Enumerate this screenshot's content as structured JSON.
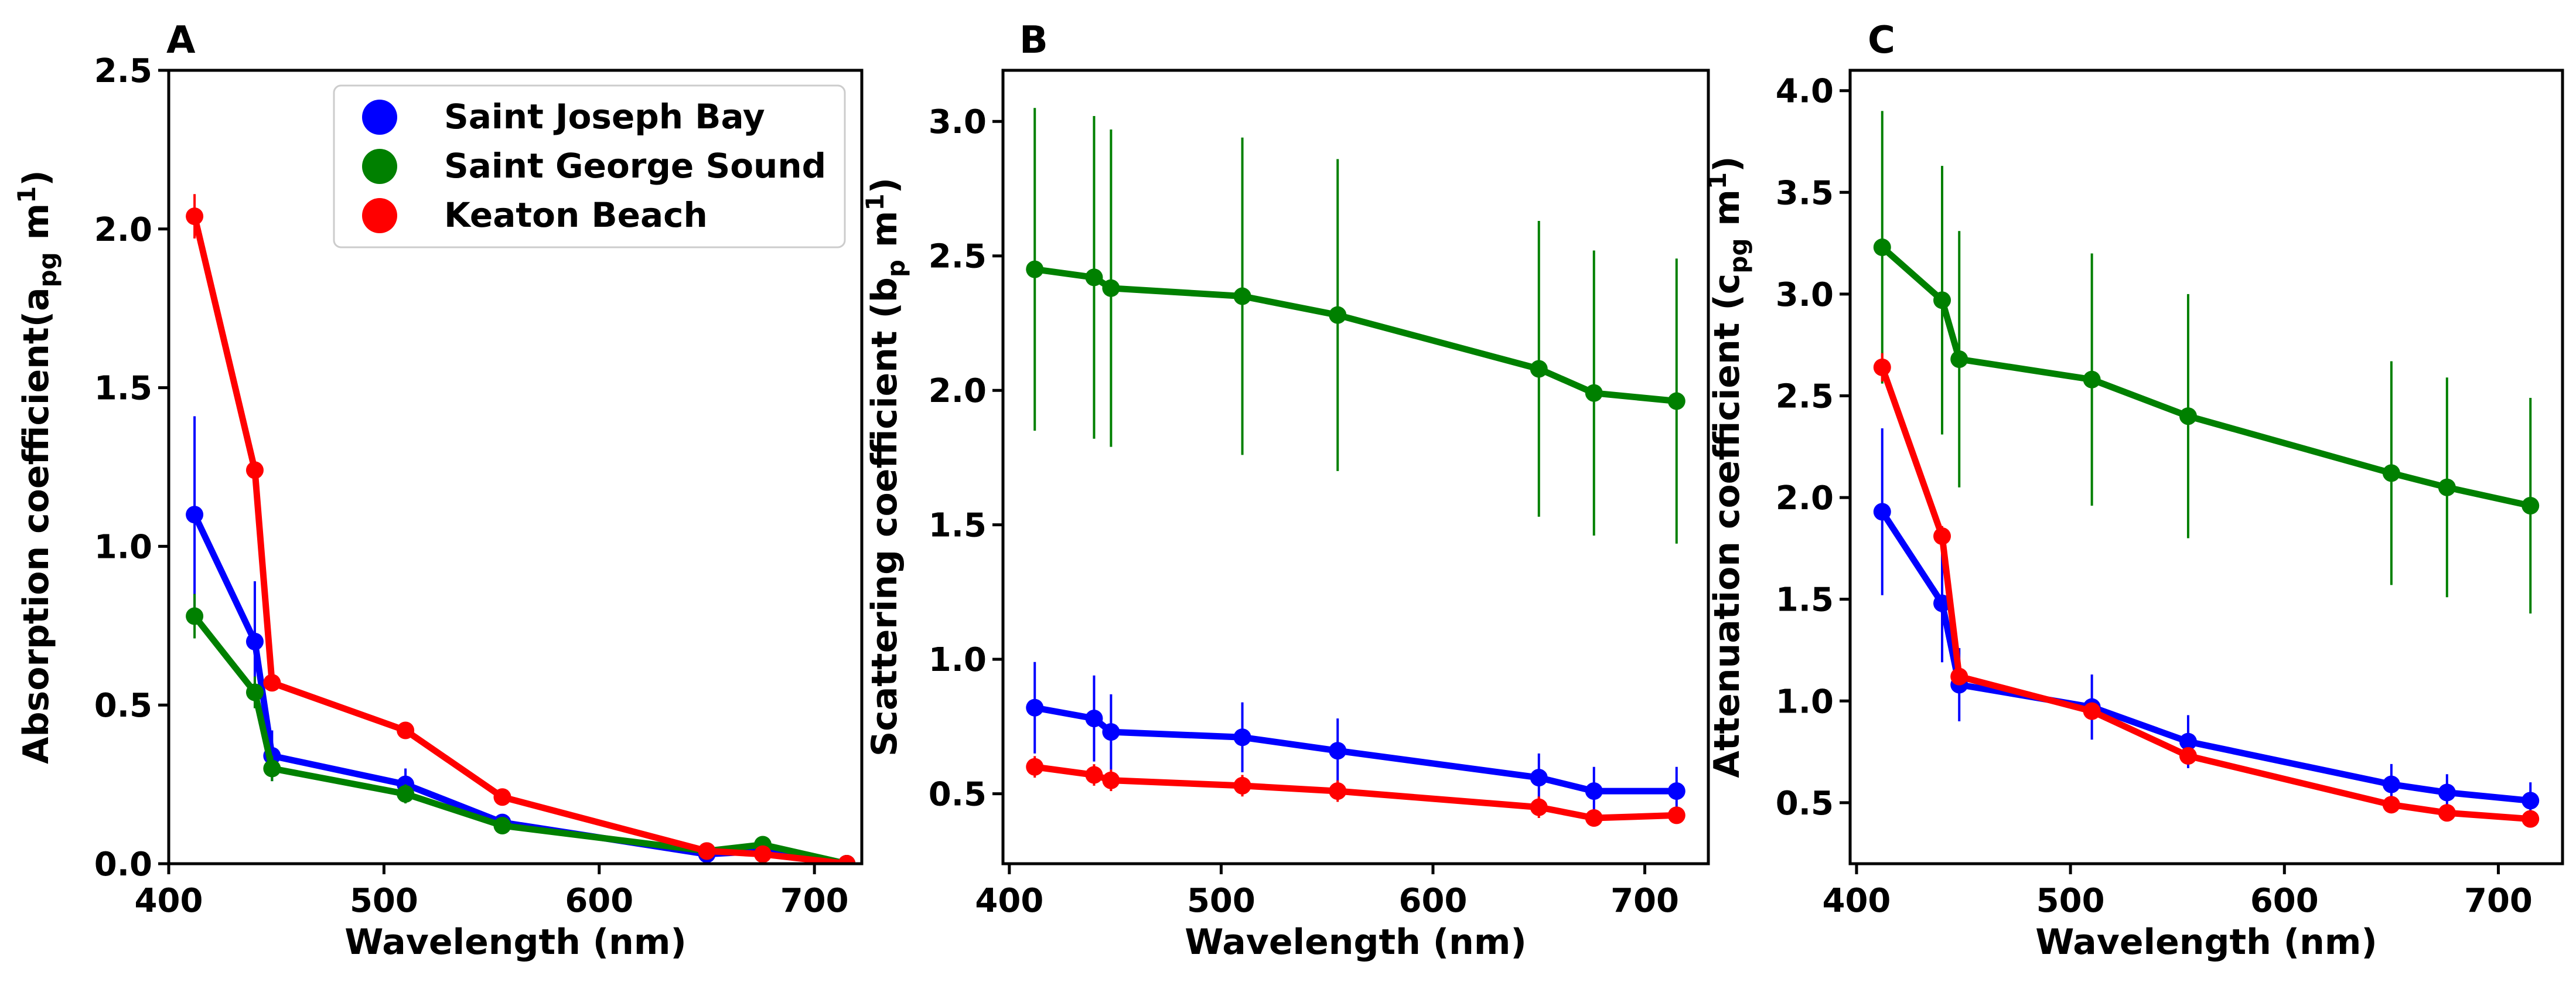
{
  "chart_data": [
    {
      "type": "line",
      "panel_label": "A",
      "xlabel": "Wavelength (nm)",
      "ylabel": "Absorption coefficient(a",
      "ylabel_sub": "pg",
      "ylabel_unit": " m",
      "ylabel_sup": "1",
      "ylabel_close": ")",
      "xlim": [
        400,
        722
      ],
      "ylim": [
        0,
        2.5
      ],
      "xticks": [
        400,
        500,
        600,
        700
      ],
      "yticks": [
        0.0,
        0.5,
        1.0,
        1.5,
        2.0,
        2.5
      ],
      "ytick_labels": [
        "0.0",
        "0.5",
        "1.0",
        "1.5",
        "2.0",
        "2.5"
      ],
      "legend": {
        "position": "top-right"
      },
      "series": [
        {
          "name": "Saint Joseph Bay",
          "color": "#0000ff",
          "x": [
            412,
            440,
            448,
            510,
            555,
            650,
            676,
            715
          ],
          "y": [
            1.1,
            0.7,
            0.34,
            0.25,
            0.13,
            0.03,
            0.04,
            0.0
          ],
          "err": [
            0.31,
            0.19,
            0.08,
            0.05,
            0.02,
            0.01,
            0.01,
            0.0
          ]
        },
        {
          "name": "Saint George Sound",
          "color": "#008000",
          "x": [
            412,
            440,
            448,
            510,
            555,
            650,
            676,
            715
          ],
          "y": [
            0.78,
            0.54,
            0.3,
            0.22,
            0.12,
            0.04,
            0.06,
            0.0
          ],
          "err": [
            0.07,
            0.05,
            0.04,
            0.03,
            0.02,
            0.01,
            0.01,
            0.0
          ]
        },
        {
          "name": "Keaton Beach",
          "color": "#ff0000",
          "x": [
            412,
            440,
            448,
            510,
            555,
            650,
            676,
            715
          ],
          "y": [
            2.04,
            1.24,
            0.57,
            0.42,
            0.21,
            0.04,
            0.03,
            0.0
          ],
          "err": [
            0.07,
            0.02,
            0.02,
            0.02,
            0.01,
            0.01,
            0.01,
            0.0
          ]
        }
      ]
    },
    {
      "type": "line",
      "panel_label": "B",
      "xlabel": "Wavelength (nm)",
      "ylabel": "Scattering coefficient (b",
      "ylabel_sub": "p",
      "ylabel_unit": " m",
      "ylabel_sup": "1",
      "ylabel_close": ")",
      "xlim": [
        397,
        730
      ],
      "ylim": [
        0.24,
        3.19
      ],
      "xticks": [
        400,
        500,
        600,
        700
      ],
      "yticks": [
        0.5,
        1.0,
        1.5,
        2.0,
        2.5,
        3.0
      ],
      "ytick_labels": [
        "0.5",
        "1.0",
        "1.5",
        "2.0",
        "2.5",
        "3.0"
      ],
      "series": [
        {
          "name": "Saint Joseph Bay",
          "color": "#0000ff",
          "x": [
            412,
            440,
            448,
            510,
            555,
            650,
            676,
            715
          ],
          "y": [
            0.82,
            0.78,
            0.73,
            0.71,
            0.66,
            0.56,
            0.51,
            0.51
          ],
          "err": [
            0.17,
            0.16,
            0.14,
            0.13,
            0.12,
            0.09,
            0.09,
            0.09
          ]
        },
        {
          "name": "Saint George Sound",
          "color": "#008000",
          "x": [
            412,
            440,
            448,
            510,
            555,
            650,
            676,
            715
          ],
          "y": [
            2.45,
            2.42,
            2.38,
            2.35,
            2.28,
            2.08,
            1.99,
            1.96
          ],
          "err": [
            0.6,
            0.6,
            0.59,
            0.59,
            0.58,
            0.55,
            0.53,
            0.53
          ]
        },
        {
          "name": "Keaton Beach",
          "color": "#ff0000",
          "x": [
            412,
            440,
            448,
            510,
            555,
            650,
            676,
            715
          ],
          "y": [
            0.6,
            0.57,
            0.55,
            0.53,
            0.51,
            0.45,
            0.41,
            0.42
          ],
          "err": [
            0.04,
            0.04,
            0.04,
            0.04,
            0.04,
            0.04,
            0.03,
            0.03
          ]
        }
      ]
    },
    {
      "type": "line",
      "panel_label": "C",
      "xlabel": "Wavelength (nm)",
      "ylabel": "Attenuation coefficient (c",
      "ylabel_sub": "pg",
      "ylabel_unit": " m",
      "ylabel_sup": "1",
      "ylabel_close": ")",
      "xlim": [
        397,
        730
      ],
      "ylim": [
        0.2,
        4.1
      ],
      "xticks": [
        400,
        500,
        600,
        700
      ],
      "yticks": [
        0.5,
        1.0,
        1.5,
        2.0,
        2.5,
        3.0,
        3.5,
        4.0
      ],
      "ytick_labels": [
        "0.5",
        "1.0",
        "1.5",
        "2.0",
        "2.5",
        "3.0",
        "3.5",
        "4.0"
      ],
      "series": [
        {
          "name": "Saint Joseph Bay",
          "color": "#0000ff",
          "x": [
            412,
            440,
            448,
            510,
            555,
            650,
            676,
            715
          ],
          "y": [
            1.93,
            1.48,
            1.08,
            0.97,
            0.8,
            0.59,
            0.55,
            0.51
          ],
          "err": [
            0.41,
            0.29,
            0.18,
            0.16,
            0.13,
            0.1,
            0.09,
            0.09
          ]
        },
        {
          "name": "Saint George Sound",
          "color": "#008000",
          "x": [
            412,
            440,
            448,
            510,
            555,
            650,
            676,
            715
          ],
          "y": [
            3.23,
            2.97,
            2.68,
            2.58,
            2.4,
            2.12,
            2.05,
            1.96
          ],
          "err": [
            0.67,
            0.66,
            0.63,
            0.62,
            0.6,
            0.55,
            0.54,
            0.53
          ]
        },
        {
          "name": "Keaton Beach",
          "color": "#ff0000",
          "x": [
            412,
            440,
            448,
            510,
            555,
            650,
            676,
            715
          ],
          "y": [
            2.64,
            1.81,
            1.12,
            0.95,
            0.73,
            0.49,
            0.45,
            0.42
          ],
          "err": [
            0.07,
            0.05,
            0.04,
            0.04,
            0.04,
            0.03,
            0.03,
            0.03
          ]
        }
      ]
    }
  ]
}
